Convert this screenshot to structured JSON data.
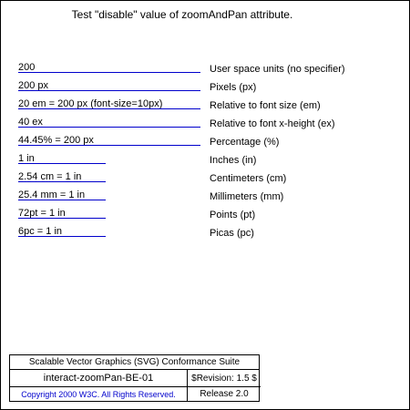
{
  "title": "Test \"disable\" value of zoomAndPan attribute.",
  "rows": [
    {
      "label": "200",
      "desc": "User space units (no specifier)"
    },
    {
      "label": "200 px",
      "desc": "Pixels (px)"
    },
    {
      "label": "20 em = 200 px (font-size=10px)",
      "desc": "Relative to font size (em)"
    },
    {
      "label": "40 ex",
      "desc": "Relative to font x-height (ex)"
    },
    {
      "label": "44.45% = 200 px",
      "desc": "Percentage (%)"
    },
    {
      "label": "1 in",
      "desc": "Inches (in)"
    },
    {
      "label": "2.54 cm = 1 in",
      "desc": "Centimeters (cm)"
    },
    {
      "label": "25.4 mm = 1 in",
      "desc": "Millimeters (mm)"
    },
    {
      "label": "72pt = 1 in",
      "desc": "Points (pt)"
    },
    {
      "label": "6pc = 1 in",
      "desc": "Picas (pc)"
    }
  ],
  "footer": {
    "suite": "Scalable Vector Graphics (SVG) Conformance Suite",
    "test_name": "interact-zoomPan-BE-01",
    "revision": "$Revision: 1.5 $",
    "copyright": "Copyright 2000 W3C. All Rights Reserved.",
    "release": "Release 2.0"
  },
  "colors": {
    "line": "#0000cc",
    "copyright": "#0000cc"
  }
}
